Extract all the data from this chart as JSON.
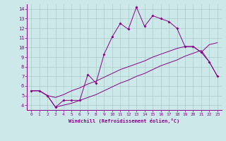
{
  "background_color": "#cce8e8",
  "line_color": "#880088",
  "grid_color": "#aacccc",
  "xlabel": "Windchill (Refroidissement éolien,°C)",
  "x_ticks": [
    0,
    1,
    2,
    3,
    4,
    5,
    6,
    7,
    8,
    9,
    10,
    11,
    12,
    13,
    14,
    15,
    16,
    17,
    18,
    19,
    20,
    21,
    22,
    23
  ],
  "y_ticks": [
    4,
    5,
    6,
    7,
    8,
    9,
    10,
    11,
    12,
    13,
    14
  ],
  "xlim": [
    -0.5,
    23.5
  ],
  "ylim": [
    3.5,
    14.5
  ],
  "main_x": [
    0,
    1,
    2,
    3,
    4,
    5,
    6,
    7,
    8,
    9,
    10,
    11,
    12,
    13,
    14,
    15,
    16,
    17,
    18,
    19,
    20,
    21,
    22,
    23
  ],
  "main_y": [
    5.5,
    5.5,
    5.0,
    3.8,
    4.5,
    4.5,
    4.5,
    7.2,
    6.3,
    9.3,
    11.1,
    12.5,
    11.9,
    14.2,
    12.2,
    13.3,
    13.0,
    12.7,
    12.0,
    10.1,
    10.1,
    9.5,
    8.5,
    7.0
  ],
  "env_upper_x": [
    0,
    1,
    2,
    3,
    4,
    5,
    6,
    7,
    8,
    9,
    10,
    11,
    12,
    13,
    14,
    15,
    16,
    17,
    18,
    19,
    20,
    21,
    22,
    23
  ],
  "env_upper_y": [
    5.5,
    5.5,
    5.0,
    4.8,
    5.1,
    5.5,
    5.8,
    6.2,
    6.5,
    6.9,
    7.3,
    7.7,
    8.0,
    8.3,
    8.6,
    9.0,
    9.3,
    9.6,
    9.9,
    10.1,
    10.1,
    9.5,
    10.3,
    10.5
  ],
  "env_lower_x": [
    0,
    1,
    2,
    3,
    4,
    5,
    6,
    7,
    8,
    9,
    10,
    11,
    12,
    13,
    14,
    15,
    16,
    17,
    18,
    19,
    20,
    21,
    22,
    23
  ],
  "env_lower_y": [
    5.5,
    5.5,
    5.0,
    3.8,
    4.0,
    4.2,
    4.5,
    4.8,
    5.1,
    5.5,
    5.9,
    6.3,
    6.6,
    7.0,
    7.3,
    7.7,
    8.1,
    8.4,
    8.7,
    9.1,
    9.4,
    9.7,
    8.5,
    7.0
  ]
}
